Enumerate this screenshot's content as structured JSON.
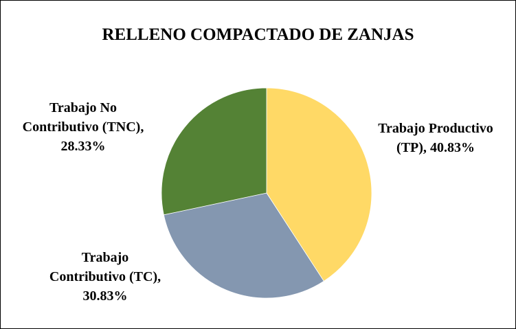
{
  "chart_data": {
    "type": "pie",
    "title": "RELLENO COMPACTADO DE ZANJAS",
    "categories": [
      "Trabajo Productivo (TP),",
      "Trabajo Contributivo (TC),",
      "Trabajo No Contributivo (TNC),"
    ],
    "values": [
      40.83,
      30.83,
      28.33
    ],
    "value_labels": [
      "40.83%",
      "30.83%",
      "28.33%"
    ],
    "colors": [
      "#FFD966",
      "#8497B0",
      "#548235"
    ]
  }
}
